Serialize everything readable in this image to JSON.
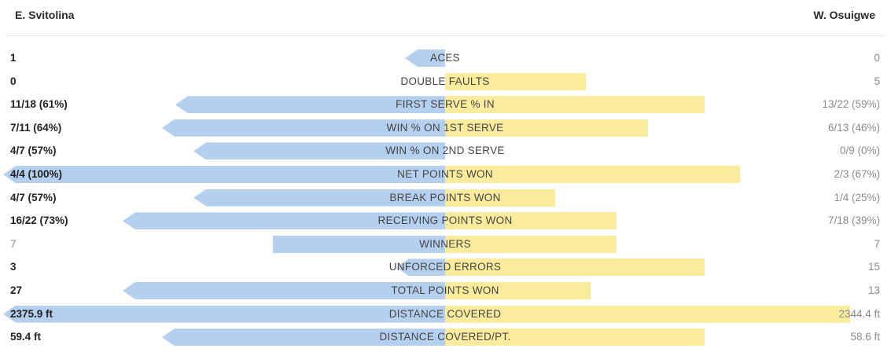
{
  "players": {
    "left": "E. Svitolina",
    "right": "W. Osuigwe"
  },
  "colors": {
    "left_bar": "#b5d0ee",
    "right_bar": "#fbec9d"
  },
  "stats": [
    {
      "label": "ACES",
      "left": "1",
      "right": "0",
      "left_share": 0.09,
      "right_share": 0.0,
      "winner": "left"
    },
    {
      "label": "DOUBLE FAULTS",
      "left": "0",
      "right": "5",
      "left_share": 0.0,
      "right_share": 0.32,
      "winner": "left"
    },
    {
      "label": "FIRST SERVE % IN",
      "left": "11/18 (61%)",
      "right": "13/22 (59%)",
      "left_share": 0.61,
      "right_share": 0.59,
      "winner": "left"
    },
    {
      "label": "WIN % ON 1ST SERVE",
      "left": "7/11 (64%)",
      "right": "6/13 (46%)",
      "left_share": 0.64,
      "right_share": 0.46,
      "winner": "left"
    },
    {
      "label": "WIN % ON 2ND SERVE",
      "left": "4/7 (57%)",
      "right": "0/9 (0%)",
      "left_share": 0.57,
      "right_share": 0.0,
      "winner": "left"
    },
    {
      "label": "NET POINTS WON",
      "left": "4/4 (100%)",
      "right": "2/3 (67%)",
      "left_share": 1.0,
      "right_share": 0.67,
      "winner": "left"
    },
    {
      "label": "BREAK POINTS WON",
      "left": "4/7 (57%)",
      "right": "1/4 (25%)",
      "left_share": 0.57,
      "right_share": 0.25,
      "winner": "left"
    },
    {
      "label": "RECEIVING POINTS WON",
      "left": "16/22 (73%)",
      "right": "7/18 (39%)",
      "left_share": 0.73,
      "right_share": 0.39,
      "winner": "left"
    },
    {
      "label": "WINNERS",
      "left": "7",
      "right": "7",
      "left_share": 0.39,
      "right_share": 0.39,
      "winner": "tie",
      "flat": true
    },
    {
      "label": "UNFORCED ERRORS",
      "left": "3",
      "right": "15",
      "left_share": 0.11,
      "right_share": 0.59,
      "winner": "left"
    },
    {
      "label": "TOTAL POINTS WON",
      "left": "27",
      "right": "13",
      "left_share": 0.73,
      "right_share": 0.33,
      "winner": "left"
    },
    {
      "label": "DISTANCE COVERED",
      "left": "2375.9 ft",
      "right": "2344.4 ft",
      "left_share": 1.0,
      "right_share": 0.92,
      "winner": "left"
    },
    {
      "label": "DISTANCE COVERED/PT.",
      "left": "59.4 ft",
      "right": "58.6 ft",
      "left_share": 0.64,
      "right_share": 0.59,
      "winner": "left"
    }
  ]
}
